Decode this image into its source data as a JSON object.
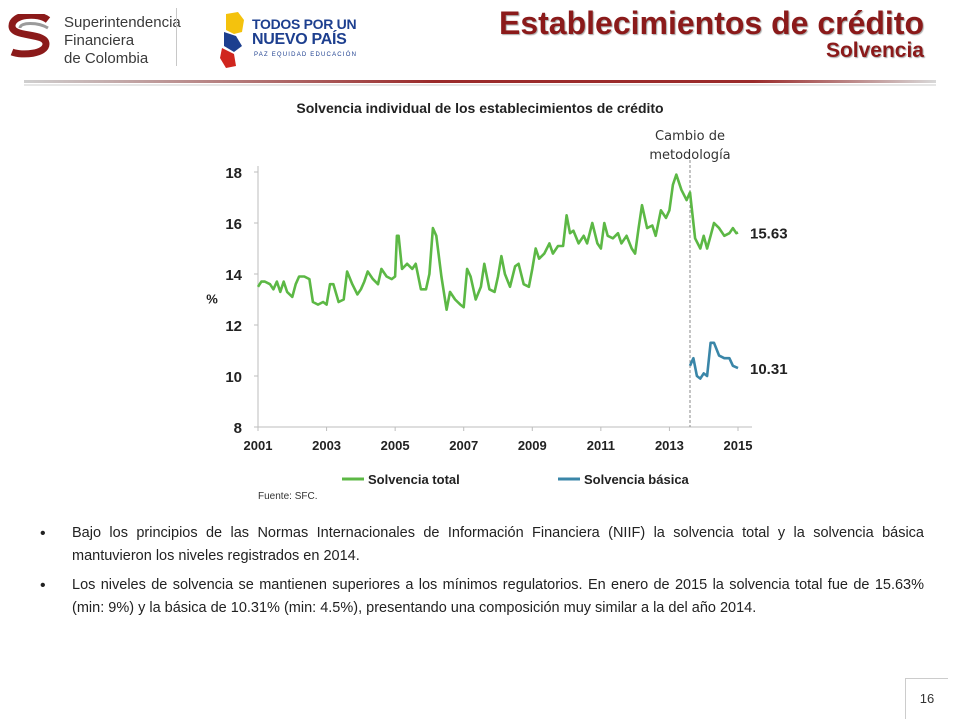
{
  "header": {
    "sfc_logo_lines": [
      "Superintendencia",
      "Financiera",
      "de Colombia"
    ],
    "gov_logo_lines": [
      "TODOS POR UN",
      "NUEVO PAÍS",
      "PAZ  EQUIDAD  EDUCACIÓN"
    ],
    "title": "Establecimientos de crédito",
    "subtitle": "Solvencia"
  },
  "chart_data": {
    "type": "line",
    "title": "Solvencia individual de los establecimientos de crédito",
    "ylabel": "%",
    "ylim": [
      8,
      18
    ],
    "yticks": [
      "8",
      "10",
      "12",
      "14",
      "16",
      "18"
    ],
    "xlim": [
      2001,
      2015
    ],
    "xticks": [
      "2001",
      "2003",
      "2005",
      "2007",
      "2009",
      "2011",
      "2013",
      "2015"
    ],
    "annotation": {
      "text_lines": [
        "Cambio de",
        "metodología"
      ],
      "x": 2013.6
    },
    "end_labels": {
      "total": "15.63",
      "basica": "10.31"
    },
    "legend": "bottom",
    "source": "Fuente: SFC.",
    "series": [
      {
        "name": "Solvencia total",
        "color": "#5cb845",
        "points": [
          [
            2001.0,
            13.5
          ],
          [
            2001.1,
            13.7
          ],
          [
            2001.2,
            13.7
          ],
          [
            2001.35,
            13.6
          ],
          [
            2001.45,
            13.4
          ],
          [
            2001.55,
            13.7
          ],
          [
            2001.65,
            13.3
          ],
          [
            2001.75,
            13.7
          ],
          [
            2001.85,
            13.3
          ],
          [
            2002.0,
            13.1
          ],
          [
            2002.1,
            13.6
          ],
          [
            2002.2,
            13.9
          ],
          [
            2002.35,
            13.9
          ],
          [
            2002.5,
            13.8
          ],
          [
            2002.6,
            12.9
          ],
          [
            2002.75,
            12.8
          ],
          [
            2002.9,
            12.9
          ],
          [
            2003.0,
            12.8
          ],
          [
            2003.1,
            13.6
          ],
          [
            2003.2,
            13.6
          ],
          [
            2003.35,
            12.9
          ],
          [
            2003.5,
            13.0
          ],
          [
            2003.6,
            14.1
          ],
          [
            2003.75,
            13.6
          ],
          [
            2003.9,
            13.2
          ],
          [
            2004.0,
            13.4
          ],
          [
            2004.1,
            13.7
          ],
          [
            2004.2,
            14.1
          ],
          [
            2004.35,
            13.8
          ],
          [
            2004.5,
            13.6
          ],
          [
            2004.6,
            14.2
          ],
          [
            2004.75,
            13.9
          ],
          [
            2004.9,
            13.8
          ],
          [
            2005.0,
            13.9
          ],
          [
            2005.05,
            15.5
          ],
          [
            2005.1,
            15.5
          ],
          [
            2005.2,
            14.2
          ],
          [
            2005.35,
            14.4
          ],
          [
            2005.5,
            14.2
          ],
          [
            2005.6,
            14.4
          ],
          [
            2005.75,
            13.4
          ],
          [
            2005.9,
            13.4
          ],
          [
            2006.0,
            14.0
          ],
          [
            2006.1,
            15.8
          ],
          [
            2006.2,
            15.5
          ],
          [
            2006.35,
            13.9
          ],
          [
            2006.5,
            12.6
          ],
          [
            2006.6,
            13.3
          ],
          [
            2006.75,
            13.0
          ],
          [
            2006.9,
            12.8
          ],
          [
            2007.0,
            12.7
          ],
          [
            2007.1,
            14.2
          ],
          [
            2007.2,
            13.9
          ],
          [
            2007.35,
            13.0
          ],
          [
            2007.5,
            13.5
          ],
          [
            2007.6,
            14.4
          ],
          [
            2007.75,
            13.4
          ],
          [
            2007.9,
            13.3
          ],
          [
            2008.0,
            13.9
          ],
          [
            2008.1,
            14.7
          ],
          [
            2008.2,
            14.0
          ],
          [
            2008.35,
            13.5
          ],
          [
            2008.5,
            14.3
          ],
          [
            2008.6,
            14.4
          ],
          [
            2008.75,
            13.6
          ],
          [
            2008.9,
            13.5
          ],
          [
            2009.0,
            14.2
          ],
          [
            2009.1,
            15.0
          ],
          [
            2009.2,
            14.6
          ],
          [
            2009.35,
            14.8
          ],
          [
            2009.5,
            15.2
          ],
          [
            2009.6,
            14.8
          ],
          [
            2009.75,
            15.1
          ],
          [
            2009.9,
            15.1
          ],
          [
            2010.0,
            16.3
          ],
          [
            2010.1,
            15.6
          ],
          [
            2010.2,
            15.7
          ],
          [
            2010.35,
            15.2
          ],
          [
            2010.5,
            15.5
          ],
          [
            2010.6,
            15.2
          ],
          [
            2010.75,
            16.0
          ],
          [
            2010.9,
            15.2
          ],
          [
            2011.0,
            15.0
          ],
          [
            2011.1,
            16.0
          ],
          [
            2011.2,
            15.5
          ],
          [
            2011.35,
            15.4
          ],
          [
            2011.5,
            15.6
          ],
          [
            2011.6,
            15.2
          ],
          [
            2011.75,
            15.5
          ],
          [
            2011.9,
            15.0
          ],
          [
            2012.0,
            14.8
          ],
          [
            2012.1,
            15.8
          ],
          [
            2012.2,
            16.7
          ],
          [
            2012.35,
            15.8
          ],
          [
            2012.5,
            15.9
          ],
          [
            2012.6,
            15.5
          ],
          [
            2012.75,
            16.5
          ],
          [
            2012.9,
            16.2
          ],
          [
            2013.0,
            16.5
          ],
          [
            2013.1,
            17.5
          ],
          [
            2013.2,
            17.9
          ],
          [
            2013.35,
            17.3
          ],
          [
            2013.5,
            16.9
          ],
          [
            2013.6,
            17.2
          ],
          [
            2013.75,
            15.4
          ],
          [
            2013.9,
            15.0
          ],
          [
            2014.0,
            15.5
          ],
          [
            2014.1,
            15.0
          ],
          [
            2014.2,
            15.5
          ],
          [
            2014.3,
            16.0
          ],
          [
            2014.45,
            15.8
          ],
          [
            2014.6,
            15.5
          ],
          [
            2014.75,
            15.6
          ],
          [
            2014.85,
            15.8
          ],
          [
            2014.95,
            15.6
          ],
          [
            2015.0,
            15.63
          ]
        ]
      },
      {
        "name": "Solvencia básica",
        "color": "#3a86a8",
        "points": [
          [
            2013.6,
            10.4
          ],
          [
            2013.7,
            10.7
          ],
          [
            2013.8,
            10.0
          ],
          [
            2013.9,
            9.9
          ],
          [
            2014.0,
            10.1
          ],
          [
            2014.1,
            10.0
          ],
          [
            2014.2,
            11.3
          ],
          [
            2014.3,
            11.3
          ],
          [
            2014.45,
            10.8
          ],
          [
            2014.6,
            10.7
          ],
          [
            2014.75,
            10.7
          ],
          [
            2014.85,
            10.4
          ],
          [
            2015.0,
            10.31
          ]
        ]
      }
    ]
  },
  "bullets": [
    "Bajo los principios de las Normas Internacionales de Información Financiera (NIIF) la solvencia total y la solvencia básica mantuvieron los niveles registrados en 2014.",
    "Los niveles de solvencia se mantienen superiores a los mínimos regulatorios. En enero de 2015 la solvencia total fue de 15.63% (min: 9%) y la básica de 10.31% (min: 4.5%), presentando una composición muy similar a la del año 2014."
  ],
  "page_number": "16"
}
